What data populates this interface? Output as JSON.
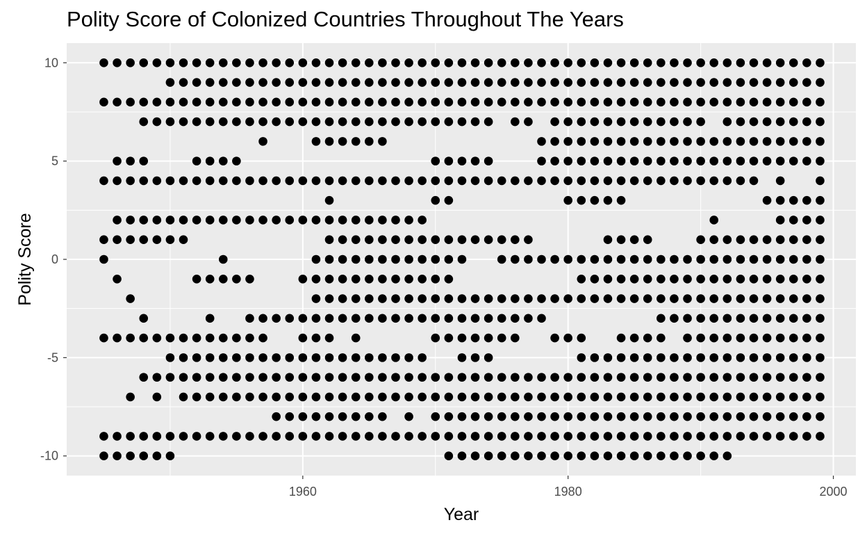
{
  "chart_data": {
    "type": "scatter",
    "title": "Polity Score of Colonized Countries Throughout The Years",
    "xlabel": "Year",
    "ylabel": "Polity Score",
    "xlim": [
      1942.2,
      2001.7
    ],
    "ylim": [
      -11.0,
      11.0
    ],
    "x_ticks": [
      1960,
      1980,
      2000
    ],
    "x_tick_labels": [
      "1960",
      "1980",
      "2000"
    ],
    "y_ticks": [
      -10,
      -5,
      0,
      5,
      10
    ],
    "y_tick_labels": [
      "-10",
      "-5",
      "0",
      "5",
      "10"
    ],
    "grid": true,
    "legend": "none",
    "colors": {
      "panel": "#ebebeb",
      "grid": "#ffffff",
      "point": "#000000"
    },
    "series": [
      {
        "points_by_score": [
          {
            "y": 10,
            "ranges": [
              [
                1945,
                1999
              ]
            ]
          },
          {
            "y": 9,
            "ranges": [
              [
                1950,
                1999
              ]
            ]
          },
          {
            "y": 8,
            "ranges": [
              [
                1945,
                1999
              ]
            ]
          },
          {
            "y": 7,
            "ranges": [
              [
                1948,
                1974
              ],
              [
                1976,
                1977
              ],
              [
                1979,
                1990
              ],
              [
                1992,
                1999
              ]
            ]
          },
          {
            "y": 6,
            "ranges": [
              [
                1957,
                1957
              ],
              [
                1961,
                1966
              ],
              [
                1978,
                1999
              ]
            ]
          },
          {
            "y": 5,
            "ranges": [
              [
                1946,
                1948
              ],
              [
                1952,
                1955
              ],
              [
                1970,
                1974
              ],
              [
                1978,
                1999
              ]
            ]
          },
          {
            "y": 4,
            "ranges": [
              [
                1945,
                1994
              ],
              [
                1996,
                1996
              ],
              [
                1999,
                1999
              ]
            ]
          },
          {
            "y": 3,
            "ranges": [
              [
                1962,
                1962
              ],
              [
                1970,
                1971
              ],
              [
                1980,
                1984
              ],
              [
                1995,
                1999
              ]
            ]
          },
          {
            "y": 2,
            "ranges": [
              [
                1946,
                1969
              ],
              [
                1991,
                1991
              ],
              [
                1996,
                1999
              ]
            ]
          },
          {
            "y": 1,
            "ranges": [
              [
                1945,
                1951
              ],
              [
                1962,
                1977
              ],
              [
                1983,
                1986
              ],
              [
                1990,
                1999
              ]
            ]
          },
          {
            "y": 0,
            "ranges": [
              [
                1945,
                1945
              ],
              [
                1954,
                1954
              ],
              [
                1961,
                1972
              ],
              [
                1975,
                1999
              ]
            ]
          },
          {
            "y": -1,
            "ranges": [
              [
                1946,
                1946
              ],
              [
                1952,
                1956
              ],
              [
                1960,
                1971
              ],
              [
                1981,
                1999
              ]
            ]
          },
          {
            "y": -2,
            "ranges": [
              [
                1947,
                1947
              ],
              [
                1961,
                1999
              ]
            ]
          },
          {
            "y": -3,
            "ranges": [
              [
                1948,
                1948
              ],
              [
                1953,
                1953
              ],
              [
                1956,
                1978
              ],
              [
                1987,
                1999
              ]
            ]
          },
          {
            "y": -4,
            "ranges": [
              [
                1945,
                1957
              ],
              [
                1960,
                1962
              ],
              [
                1964,
                1964
              ],
              [
                1970,
                1976
              ],
              [
                1979,
                1981
              ],
              [
                1984,
                1987
              ],
              [
                1989,
                1999
              ]
            ]
          },
          {
            "y": -5,
            "ranges": [
              [
                1950,
                1969
              ],
              [
                1972,
                1974
              ],
              [
                1981,
                1999
              ]
            ]
          },
          {
            "y": -6,
            "ranges": [
              [
                1948,
                1999
              ]
            ]
          },
          {
            "y": -7,
            "ranges": [
              [
                1947,
                1947
              ],
              [
                1949,
                1949
              ],
              [
                1951,
                1999
              ]
            ]
          },
          {
            "y": -8,
            "ranges": [
              [
                1958,
                1966
              ],
              [
                1968,
                1968
              ],
              [
                1970,
                1999
              ]
            ]
          },
          {
            "y": -9,
            "ranges": [
              [
                1945,
                1999
              ]
            ]
          },
          {
            "y": -10,
            "ranges": [
              [
                1945,
                1950
              ],
              [
                1971,
                1992
              ]
            ]
          }
        ]
      }
    ]
  }
}
